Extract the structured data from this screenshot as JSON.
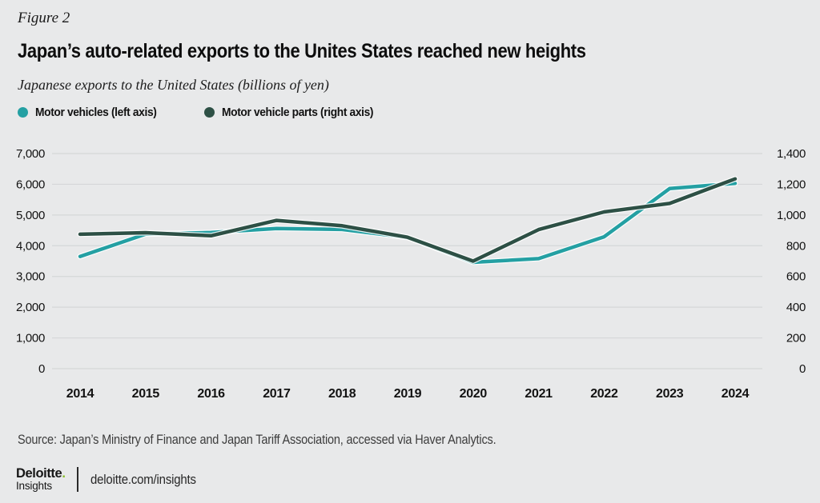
{
  "figure_label": "Figure 2",
  "title": "Japan’s auto-related exports to the Unites States reached new heights",
  "subtitle": "Japanese exports to the United States (billions of yen)",
  "legend": [
    {
      "label": "Motor vehicles (left axis)",
      "color": "#24a0a3"
    },
    {
      "label": "Motor vehicle parts (right axis)",
      "color": "#2d5045"
    }
  ],
  "source": "Source: Japan’s Ministry of Finance and Japan Tariff Association, accessed via Haver Analytics.",
  "footer": {
    "brand_name": "Deloitte",
    "brand_period": ".",
    "brand_sub": "Insights",
    "link": "deloitte.com/insights",
    "dot_color": "#86bc25"
  },
  "chart_data": {
    "type": "line",
    "title": "Japan’s auto-related exports to the Unites States reached new heights",
    "subtitle": "Japanese exports to the United States (billions of yen)",
    "categories": [
      "2014",
      "2015",
      "2016",
      "2017",
      "2018",
      "2019",
      "2020",
      "2021",
      "2022",
      "2023",
      "2024"
    ],
    "series": [
      {
        "name": "Motor vehicles (left axis)",
        "axis": "left",
        "color": "#24a0a3",
        "values": [
          3650,
          4380,
          4430,
          4560,
          4530,
          4270,
          3460,
          3580,
          4290,
          5860,
          6030
        ]
      },
      {
        "name": "Motor vehicle parts (right axis)",
        "axis": "right",
        "color": "#2d5045",
        "values": [
          875,
          885,
          865,
          965,
          930,
          855,
          700,
          905,
          1020,
          1075,
          1235
        ]
      }
    ],
    "left_axis": {
      "min": 0,
      "max": 7000,
      "step": 1000,
      "tick_labels": [
        "0",
        "1,000",
        "2,000",
        "3,000",
        "4,000",
        "5,000",
        "6,000",
        "7,000"
      ]
    },
    "right_axis": {
      "min": 0,
      "max": 1400,
      "step": 200,
      "tick_labels": [
        "0",
        "200",
        "400",
        "600",
        "800",
        "1,000",
        "1,200",
        "1,400"
      ]
    },
    "grid": true,
    "legend_position": "top-left",
    "colors": {
      "background": "#e8e9ea",
      "gridline": "#d5d7d8",
      "text": "#121212"
    }
  }
}
